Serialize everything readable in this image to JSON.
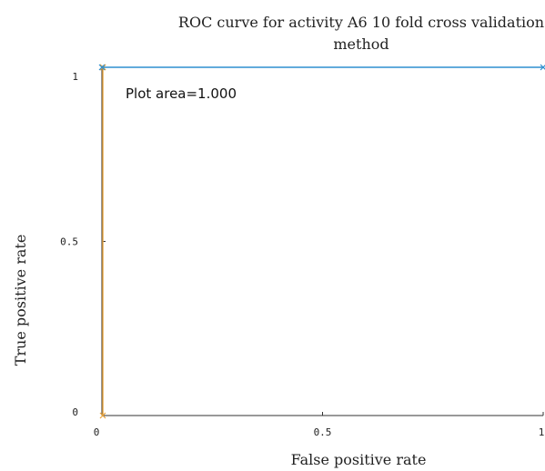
{
  "chart_data": {
    "type": "line",
    "title_lines": [
      "ROC curve for activity A6 10 fold cross validation",
      "method"
    ],
    "xlabel": "False positive rate",
    "ylabel": "True positive rate",
    "xlim": [
      0,
      1
    ],
    "ylim": [
      0,
      1
    ],
    "x_ticks": [
      0,
      0.5,
      1
    ],
    "x_tick_labels": [
      "0",
      "0.5",
      "1"
    ],
    "y_ticks": [
      0,
      0.5,
      1
    ],
    "y_tick_labels": [
      "0",
      "0.5",
      "1"
    ],
    "grid": false,
    "annotation": "Plot area=1.000",
    "series": [
      {
        "color": "#e8a33c",
        "x": [
          0,
          0,
          0,
          0
        ],
        "y": [
          0,
          1,
          1,
          1
        ]
      },
      {
        "color": "#2f8fcf",
        "x": [
          0,
          1
        ],
        "y": [
          1,
          1
        ]
      }
    ]
  }
}
